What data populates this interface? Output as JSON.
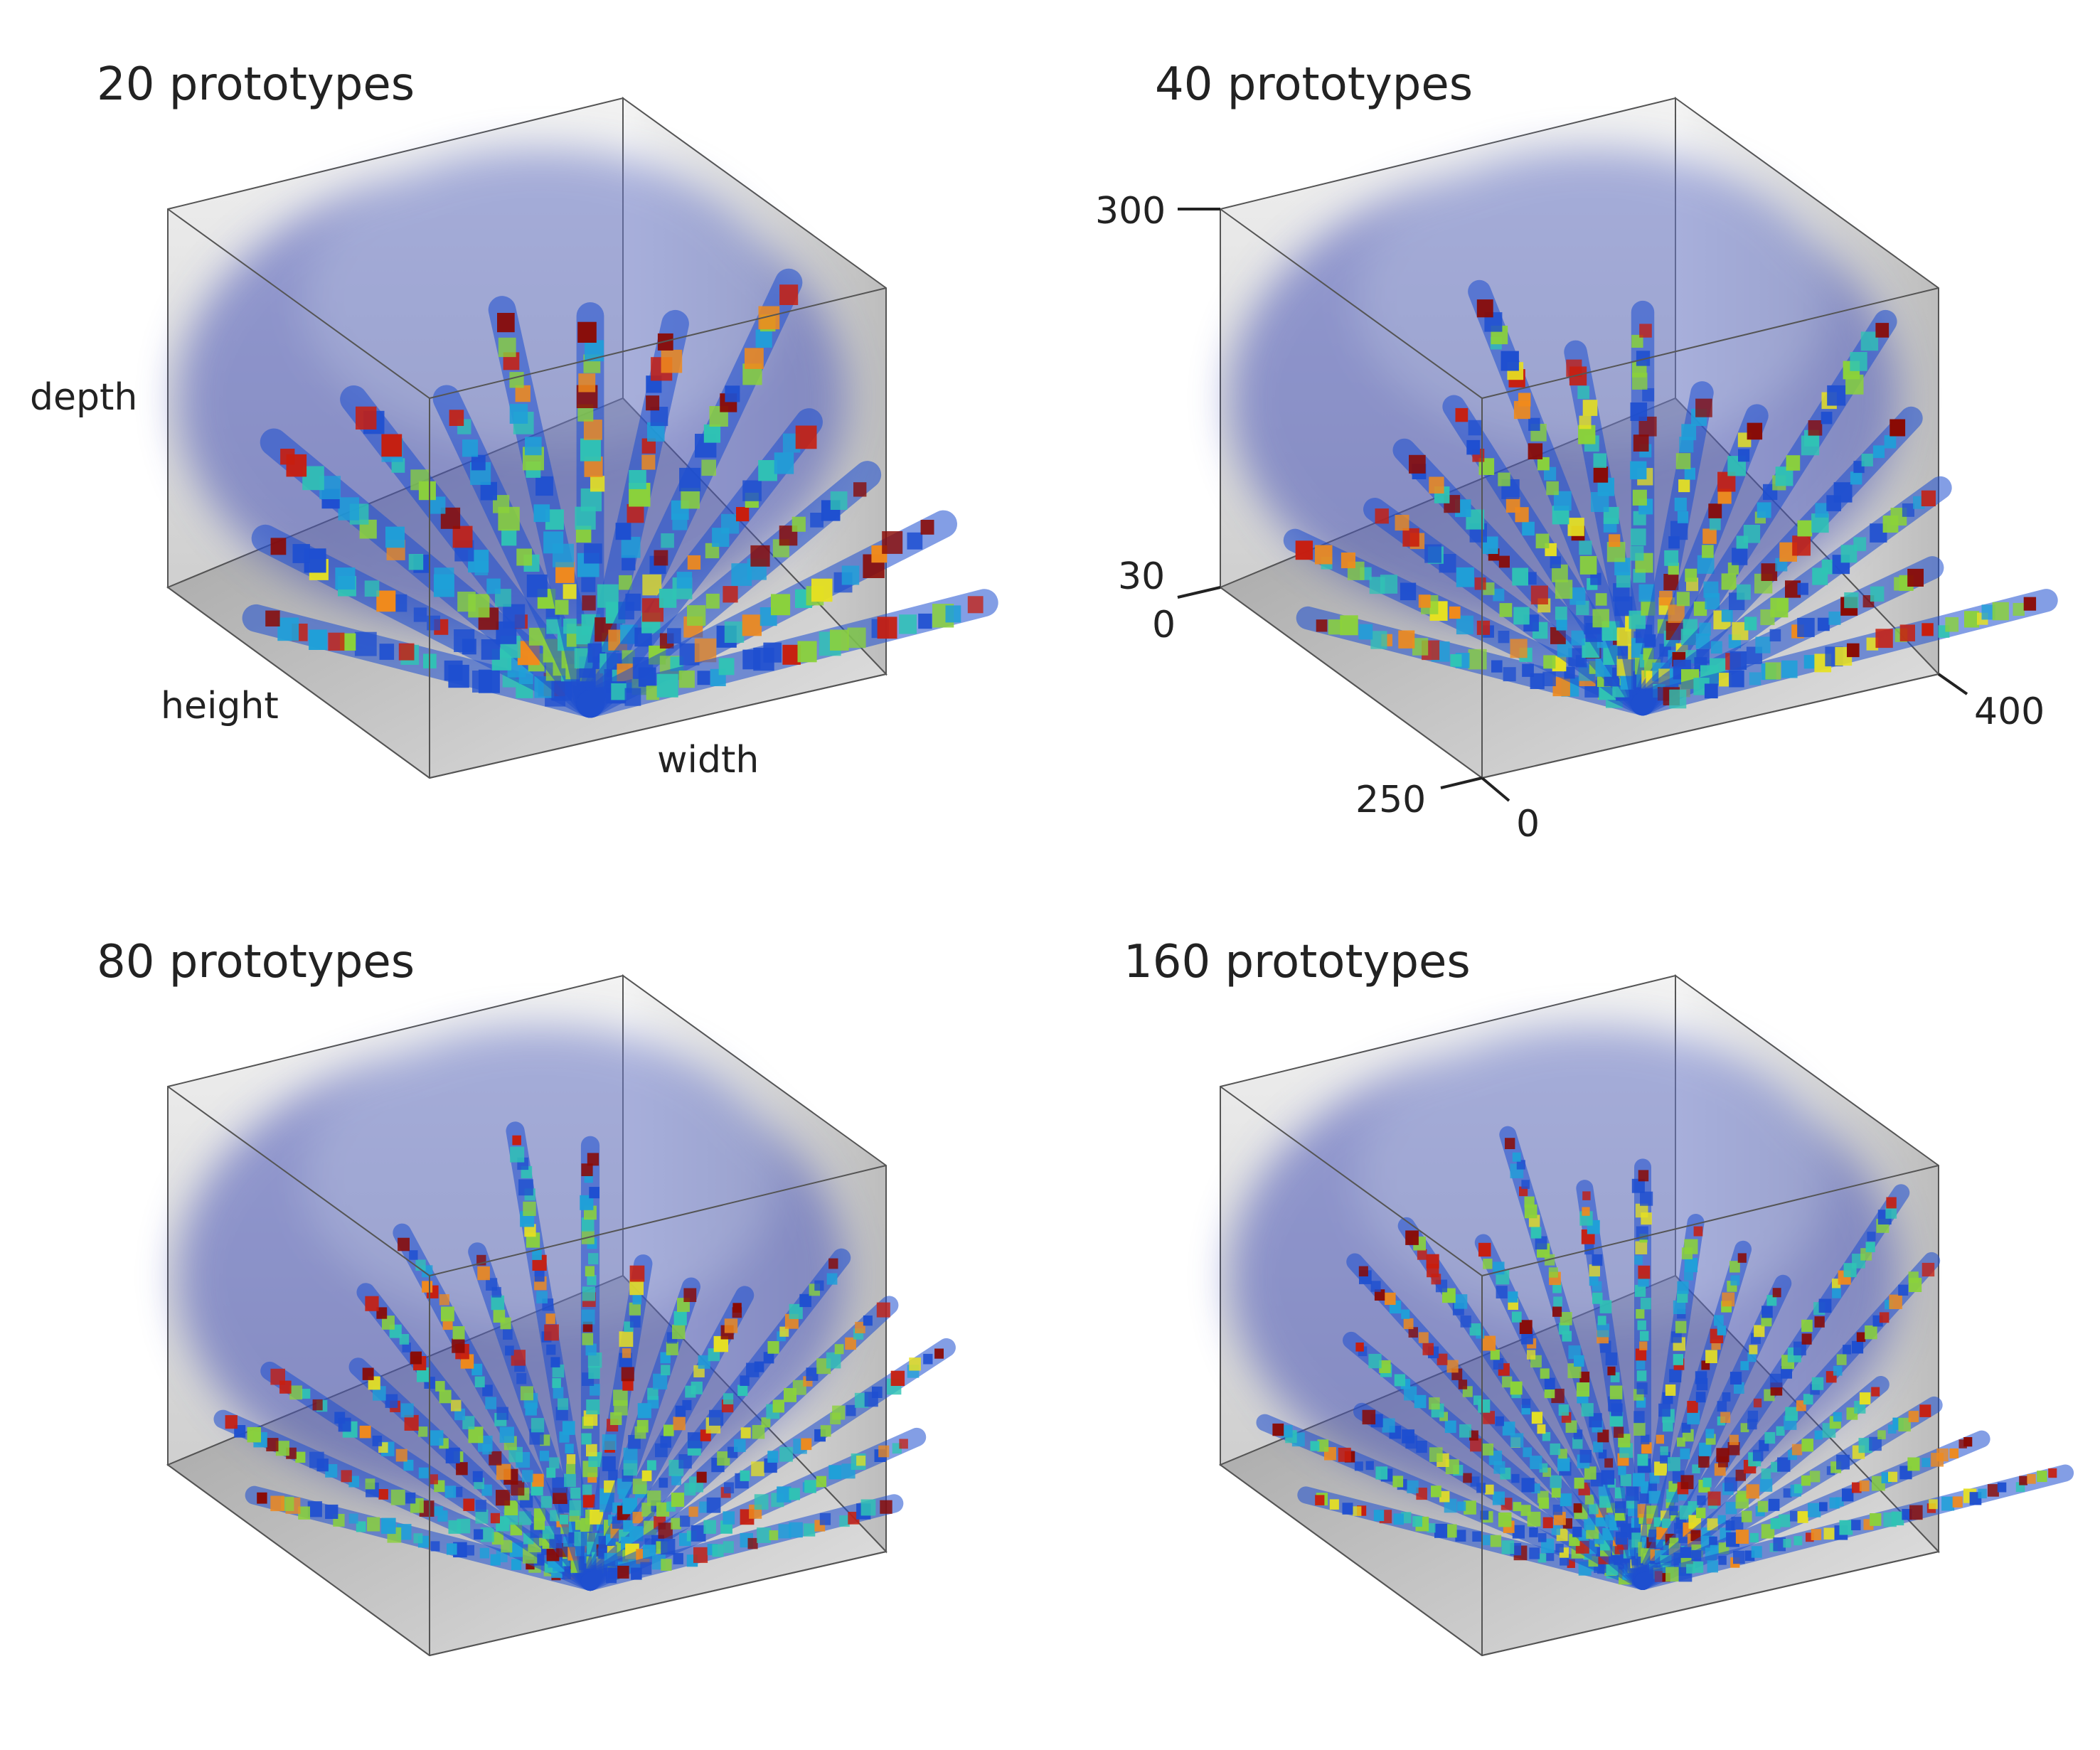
{
  "panels": [
    {
      "title": "20 prototypes",
      "axis_labels": {
        "depth": "depth",
        "height": "height",
        "width": "width"
      },
      "ticks": null
    },
    {
      "title": "40 prototypes",
      "axis_labels": null,
      "ticks": {
        "depth_top": "300",
        "depth_bottom": "30",
        "origin": "0",
        "height_max": "250",
        "width_zero": "0",
        "width_max": "400"
      }
    },
    {
      "title": "80 prototypes",
      "axis_labels": null,
      "ticks": null
    },
    {
      "title": "160 prototypes",
      "axis_labels": null,
      "ticks": null
    }
  ],
  "colormap": [
    "#1a237e",
    "#1e4fd0",
    "#1fa0d8",
    "#2fc4b4",
    "#8bd23a",
    "#e6e022",
    "#f08a1c",
    "#c81e0e",
    "#8a0a04"
  ]
}
